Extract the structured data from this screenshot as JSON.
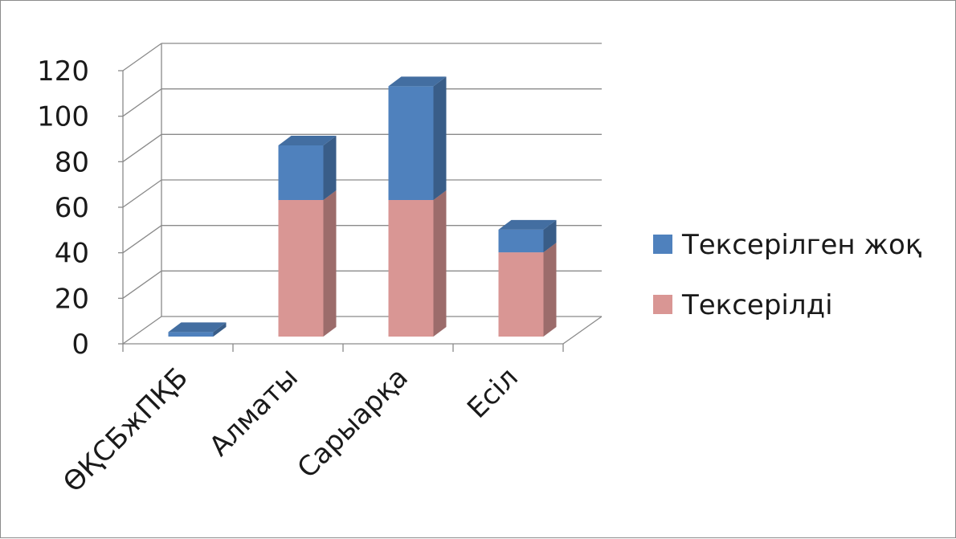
{
  "chart_data": {
    "type": "bar",
    "stacked": true,
    "three_d": true,
    "title": "",
    "xlabel": "",
    "ylabel": "",
    "categories": [
      "ӨҚСБжПҚБ",
      "Алматы",
      "Сарыарқа",
      "Есіл"
    ],
    "series": [
      {
        "name": "Тексерілді",
        "values": [
          0,
          60,
          60,
          37
        ],
        "color": "#d99694"
      },
      {
        "name": "Тексерілген жоқ",
        "values": [
          2,
          24,
          50,
          10
        ],
        "color": "#4f81bd"
      }
    ],
    "ylim": [
      0,
      120
    ],
    "yticks": [
      "0",
      "20",
      "40",
      "60",
      "80",
      "100",
      "120"
    ],
    "grid": true,
    "legend_position": "right"
  }
}
